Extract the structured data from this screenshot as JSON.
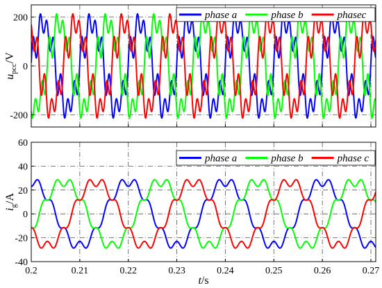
{
  "chart_data": [
    {
      "type": "line",
      "panel": "top",
      "ylabel": {
        "symbol": "u",
        "subscript": "pcc",
        "unit": "/V"
      },
      "xlim": [
        0.2,
        0.271
      ],
      "ylim": [
        -250,
        250
      ],
      "yticks": [
        -200,
        0,
        200
      ],
      "ytick_labels": [
        "-200",
        "0",
        "200"
      ],
      "grid": "dashed",
      "legend_position": "top-right",
      "waveform": {
        "fundamental_hz": 100,
        "amplitude": 170,
        "harmonic_order": 7,
        "harmonic_amplitude": 55,
        "harmonic_order_2": 5,
        "harmonic_amplitude_2": 25
      },
      "series": [
        {
          "name": "phase a",
          "color": "#0000ff",
          "phase_deg": 0
        },
        {
          "name": "phase b",
          "color": "#00ff00",
          "phase_deg": -120
        },
        {
          "name": "phasec",
          "color": "#ff0000",
          "phase_deg": 120
        }
      ]
    },
    {
      "type": "line",
      "panel": "bottom",
      "xlabel": {
        "symbol": "t",
        "unit": "/s"
      },
      "ylabel": {
        "symbol": "i",
        "subscript": "g",
        "unit": "/A"
      },
      "xlim": [
        0.2,
        0.271
      ],
      "ylim": [
        -40,
        60
      ],
      "xticks": [
        0.2,
        0.21,
        0.22,
        0.23,
        0.24,
        0.25,
        0.26,
        0.27
      ],
      "xtick_labels": [
        "0.2",
        "0.21",
        "0.22",
        "0.23",
        "0.24",
        "0.25",
        "0.26",
        "0.27"
      ],
      "yticks": [
        -40,
        -20,
        0,
        20,
        40,
        60
      ],
      "ytick_labels": [
        "-40",
        "-20",
        "0",
        "20",
        "40",
        "60"
      ],
      "grid": "dashed",
      "legend_position": "top-right",
      "waveform": {
        "fundamental_hz": 50,
        "amplitude": 27,
        "harmonic_order": 7,
        "harmonic_amplitude": 4
      },
      "series": [
        {
          "name": "phase a",
          "color": "#0000ff",
          "phase_deg": 90
        },
        {
          "name": "phase b",
          "color": "#00ff00",
          "phase_deg": -30
        },
        {
          "name": "phase c",
          "color": "#ff0000",
          "phase_deg": 210
        }
      ]
    }
  ]
}
